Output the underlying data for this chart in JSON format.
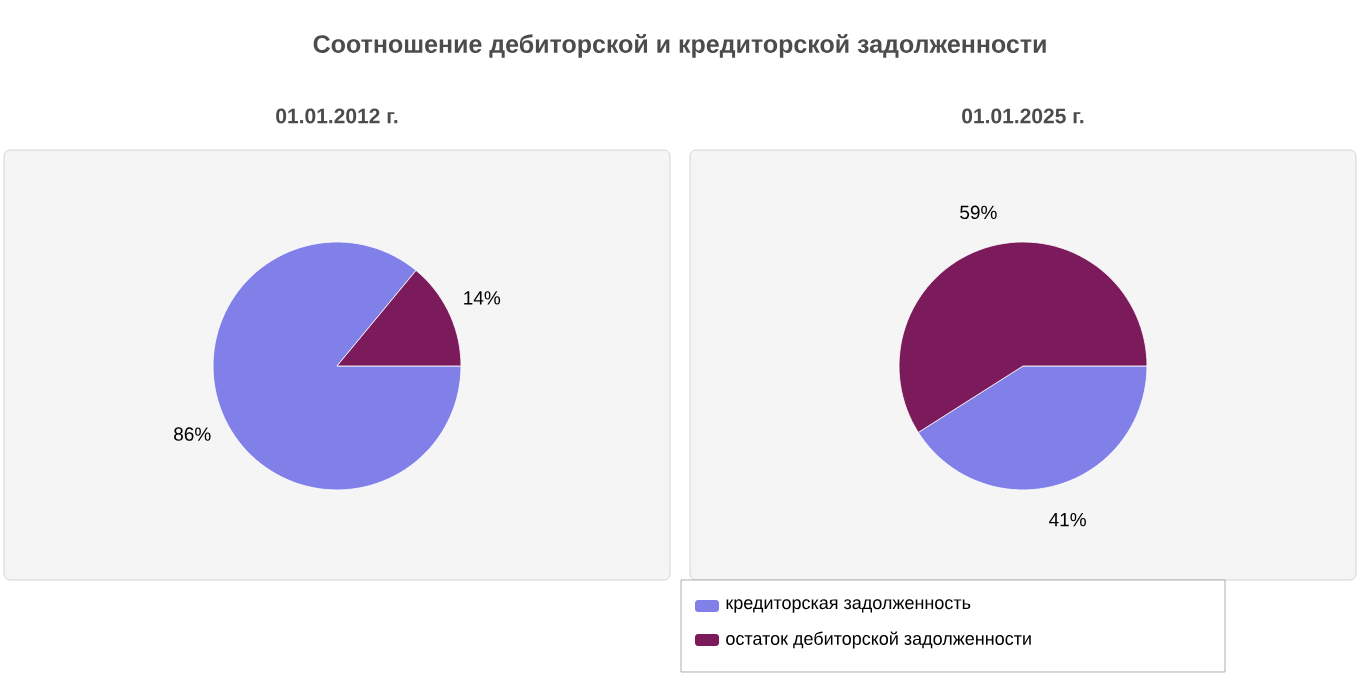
{
  "chart_data": [
    {
      "type": "other",
      "title": "Соотношение дебиторской и кредиторской задолженности"
    },
    {
      "type": "pie",
      "title": "01.01.2012 г.",
      "categories": [
        null,
        null
      ],
      "values": [
        86,
        14
      ],
      "colors": [
        "#8080e8",
        "#7b1b5b"
      ],
      "value_labels": [
        "86%",
        "14%"
      ]
    },
    {
      "type": "pie",
      "title": "01.01.2025 г.",
      "categories": [
        "кредиторская задолженность",
        "остаток дебиторской задолженности"
      ],
      "values": [
        41,
        59
      ],
      "colors": [
        "#8080e8",
        "#7b1b5b"
      ],
      "value_labels": [
        "41%",
        "59%"
      ],
      "legend": "bottom"
    }
  ]
}
